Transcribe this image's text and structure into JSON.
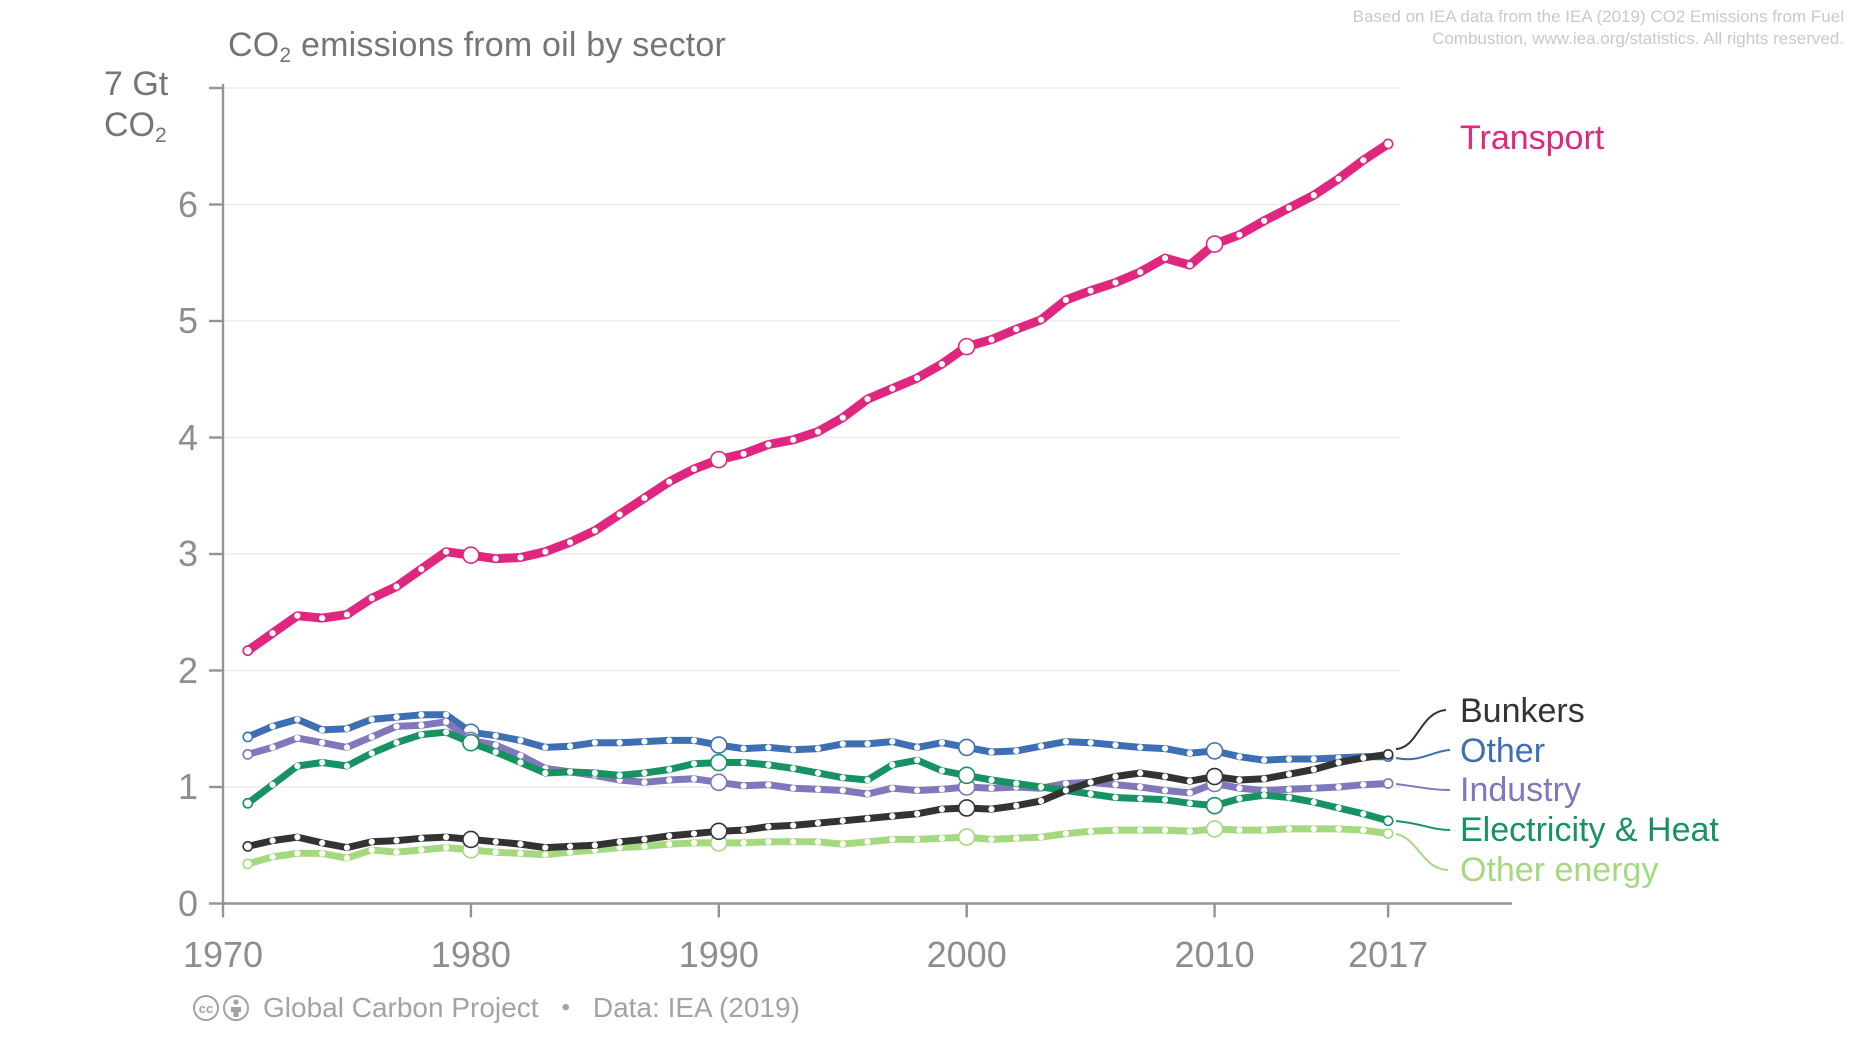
{
  "attribution": {
    "line1": "Based on IEA data from the IEA (2019) CO2 Emissions from Fuel",
    "line2": "Combustion, www.iea.org/statistics. All rights reserved."
  },
  "title": {
    "prefix": "CO",
    "sub": "2",
    "rest": " emissions from oil by sector"
  },
  "unit_label": {
    "line1": "7 Gt",
    "co": "CO",
    "sub": "2"
  },
  "footer": {
    "brand": "Global Carbon Project",
    "bullet": "•",
    "source": "Data: IEA (2019)",
    "icons": [
      "cc-icon",
      "cc-by-icon"
    ]
  },
  "chart_data": {
    "type": "line",
    "title": "CO2 emissions from oil by sector",
    "ylabel": "Gt CO2",
    "xlabel": "",
    "xlim": [
      1970,
      2017
    ],
    "ylim": [
      0,
      7
    ],
    "grid": "horizontal",
    "legend_position": "right",
    "x_tick_years": [
      1970,
      1980,
      1990,
      2000,
      2010,
      2017
    ],
    "y_ticks": [
      0,
      1,
      2,
      3,
      4,
      5,
      6
    ],
    "top_y_tick": 7,
    "marker_years": [
      1980,
      1990,
      2000,
      2010
    ],
    "x": [
      1971,
      1972,
      1973,
      1974,
      1975,
      1976,
      1977,
      1978,
      1979,
      1980,
      1981,
      1982,
      1983,
      1984,
      1985,
      1986,
      1987,
      1988,
      1989,
      1990,
      1991,
      1992,
      1993,
      1994,
      1995,
      1996,
      1997,
      1998,
      1999,
      2000,
      2001,
      2002,
      2003,
      2004,
      2005,
      2006,
      2007,
      2008,
      2009,
      2010,
      2011,
      2012,
      2013,
      2014,
      2015,
      2016,
      2017
    ],
    "series": [
      {
        "key": "transport",
        "name": "Transport",
        "color": "#e0267e",
        "z": 6,
        "width": 9,
        "values": [
          2.17,
          2.32,
          2.47,
          2.45,
          2.48,
          2.62,
          2.72,
          2.87,
          3.02,
          2.99,
          2.96,
          2.97,
          3.02,
          3.1,
          3.2,
          3.34,
          3.48,
          3.62,
          3.73,
          3.81,
          3.86,
          3.94,
          3.98,
          4.05,
          4.17,
          4.33,
          4.42,
          4.51,
          4.63,
          4.78,
          4.84,
          4.93,
          5.01,
          5.18,
          5.26,
          5.33,
          5.42,
          5.54,
          5.48,
          5.66,
          5.74,
          5.86,
          5.97,
          6.08,
          6.22,
          6.38,
          6.52
        ]
      },
      {
        "key": "bunkers",
        "name": "Bunkers",
        "color": "#333333",
        "z": 5,
        "width": 7,
        "values": [
          0.49,
          0.54,
          0.57,
          0.52,
          0.48,
          0.53,
          0.54,
          0.56,
          0.57,
          0.55,
          0.53,
          0.51,
          0.48,
          0.49,
          0.5,
          0.53,
          0.55,
          0.58,
          0.6,
          0.62,
          0.63,
          0.66,
          0.67,
          0.69,
          0.71,
          0.73,
          0.75,
          0.77,
          0.81,
          0.82,
          0.81,
          0.84,
          0.88,
          0.97,
          1.04,
          1.09,
          1.12,
          1.09,
          1.05,
          1.09,
          1.06,
          1.07,
          1.11,
          1.15,
          1.21,
          1.25,
          1.28
        ]
      },
      {
        "key": "other",
        "name": "Other",
        "color": "#3d6fb4",
        "z": 1,
        "width": 7,
        "values": [
          1.43,
          1.52,
          1.58,
          1.49,
          1.5,
          1.58,
          1.6,
          1.62,
          1.62,
          1.47,
          1.44,
          1.4,
          1.34,
          1.35,
          1.38,
          1.38,
          1.39,
          1.4,
          1.4,
          1.36,
          1.33,
          1.34,
          1.32,
          1.33,
          1.37,
          1.37,
          1.39,
          1.34,
          1.38,
          1.34,
          1.3,
          1.31,
          1.35,
          1.39,
          1.38,
          1.36,
          1.34,
          1.33,
          1.29,
          1.31,
          1.26,
          1.23,
          1.24,
          1.24,
          1.25,
          1.26,
          1.26
        ]
      },
      {
        "key": "industry",
        "name": "Industry",
        "color": "#8077bd",
        "z": 2,
        "width": 7,
        "values": [
          1.28,
          1.34,
          1.42,
          1.38,
          1.34,
          1.43,
          1.52,
          1.53,
          1.56,
          1.4,
          1.36,
          1.27,
          1.16,
          1.13,
          1.1,
          1.06,
          1.04,
          1.06,
          1.07,
          1.04,
          1.01,
          1.02,
          0.99,
          0.98,
          0.97,
          0.94,
          0.99,
          0.97,
          0.98,
          1.0,
          0.99,
          1.0,
          0.99,
          1.03,
          1.04,
          1.02,
          1.0,
          0.97,
          0.95,
          1.03,
          0.99,
          0.97,
          0.98,
          0.99,
          1.0,
          1.02,
          1.03
        ]
      },
      {
        "key": "electricity_heat",
        "name": "Electricity & Heat",
        "color": "#169263",
        "z": 3,
        "width": 7,
        "values": [
          0.86,
          1.02,
          1.18,
          1.21,
          1.18,
          1.29,
          1.38,
          1.45,
          1.47,
          1.38,
          1.3,
          1.21,
          1.12,
          1.13,
          1.12,
          1.1,
          1.12,
          1.15,
          1.2,
          1.21,
          1.21,
          1.19,
          1.16,
          1.12,
          1.08,
          1.06,
          1.19,
          1.23,
          1.14,
          1.1,
          1.06,
          1.03,
          1.0,
          0.97,
          0.94,
          0.91,
          0.9,
          0.89,
          0.86,
          0.84,
          0.9,
          0.93,
          0.91,
          0.87,
          0.82,
          0.77,
          0.71
        ]
      },
      {
        "key": "other_energy",
        "name": "Other energy",
        "color": "#a5d97f",
        "z": 4,
        "width": 7,
        "values": [
          0.34,
          0.4,
          0.43,
          0.43,
          0.39,
          0.46,
          0.44,
          0.46,
          0.48,
          0.46,
          0.44,
          0.43,
          0.42,
          0.44,
          0.46,
          0.48,
          0.49,
          0.51,
          0.52,
          0.52,
          0.52,
          0.53,
          0.53,
          0.53,
          0.51,
          0.53,
          0.55,
          0.55,
          0.56,
          0.57,
          0.55,
          0.56,
          0.57,
          0.6,
          0.62,
          0.63,
          0.63,
          0.63,
          0.62,
          0.64,
          0.63,
          0.63,
          0.64,
          0.64,
          0.64,
          0.63,
          0.6
        ]
      }
    ]
  }
}
